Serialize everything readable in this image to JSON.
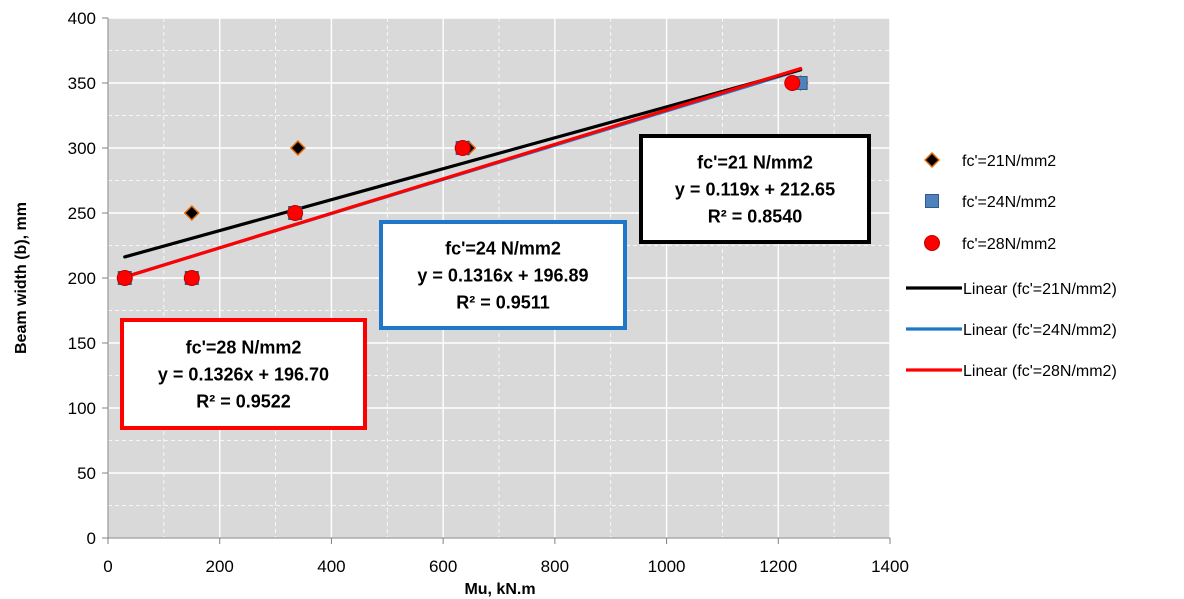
{
  "chart_data": {
    "type": "scatter",
    "xlabel": "Mu, kN.m",
    "ylabel": "Beam width (b), mm",
    "xlim": [
      0,
      1400
    ],
    "ylim": [
      0,
      400
    ],
    "xticks": [
      "0",
      "200",
      "400",
      "600",
      "800",
      "1000",
      "1200",
      "1400"
    ],
    "yticks": [
      "0",
      "50",
      "100",
      "150",
      "200",
      "250",
      "300",
      "350",
      "400"
    ],
    "grid": true,
    "legend_position": "right",
    "series": [
      {
        "name": "fc'=21N/mm2",
        "marker": "diamond",
        "color": "#000000",
        "edge_color": "#E46C0A",
        "points": [
          {
            "x": 30,
            "y": 200
          },
          {
            "x": 150,
            "y": 250
          },
          {
            "x": 340,
            "y": 300
          },
          {
            "x": 645,
            "y": 300
          },
          {
            "x": 1240,
            "y": 350
          }
        ]
      },
      {
        "name": "fc'=24N/mm2",
        "marker": "square",
        "color": "#4F81BD",
        "points": [
          {
            "x": 30,
            "y": 200
          },
          {
            "x": 150,
            "y": 200
          },
          {
            "x": 335,
            "y": 250
          },
          {
            "x": 635,
            "y": 300
          },
          {
            "x": 1240,
            "y": 350
          }
        ]
      },
      {
        "name": "fc'=28N/mm2",
        "marker": "circle",
        "color": "#FF0000",
        "points": [
          {
            "x": 30,
            "y": 200
          },
          {
            "x": 150,
            "y": 200
          },
          {
            "x": 335,
            "y": 250
          },
          {
            "x": 635,
            "y": 300
          },
          {
            "x": 1225,
            "y": 350
          }
        ]
      }
    ],
    "trendlines": [
      {
        "name": "Linear (fc'=21N/mm2)",
        "color": "#000000",
        "slope": 0.119,
        "intercept": 212.65,
        "x_range": [
          30,
          1240
        ]
      },
      {
        "name": "Linear (fc'=24N/mm2)",
        "color": "#1F77C8",
        "slope": 0.1316,
        "intercept": 196.89,
        "x_range": [
          30,
          1240
        ]
      },
      {
        "name": "Linear (fc'=28N/mm2)",
        "color": "#FF0000",
        "slope": 0.1326,
        "intercept": 196.7,
        "x_range": [
          30,
          1240
        ]
      }
    ],
    "annotations": [
      {
        "border_color": "#000000",
        "lines": [
          "fc'=21 N/mm2",
          "y = 0.119x + 212.65",
          "R² = 0.8540"
        ]
      },
      {
        "border_color": "#1F77C8",
        "lines": [
          "fc'=24 N/mm2",
          "y = 0.1316x + 196.89",
          "R² = 0.9511"
        ]
      },
      {
        "border_color": "#FF0000",
        "lines": [
          "fc'=28 N/mm2",
          "y = 0.1326x + 196.70",
          "R² = 0.9522"
        ]
      }
    ]
  }
}
